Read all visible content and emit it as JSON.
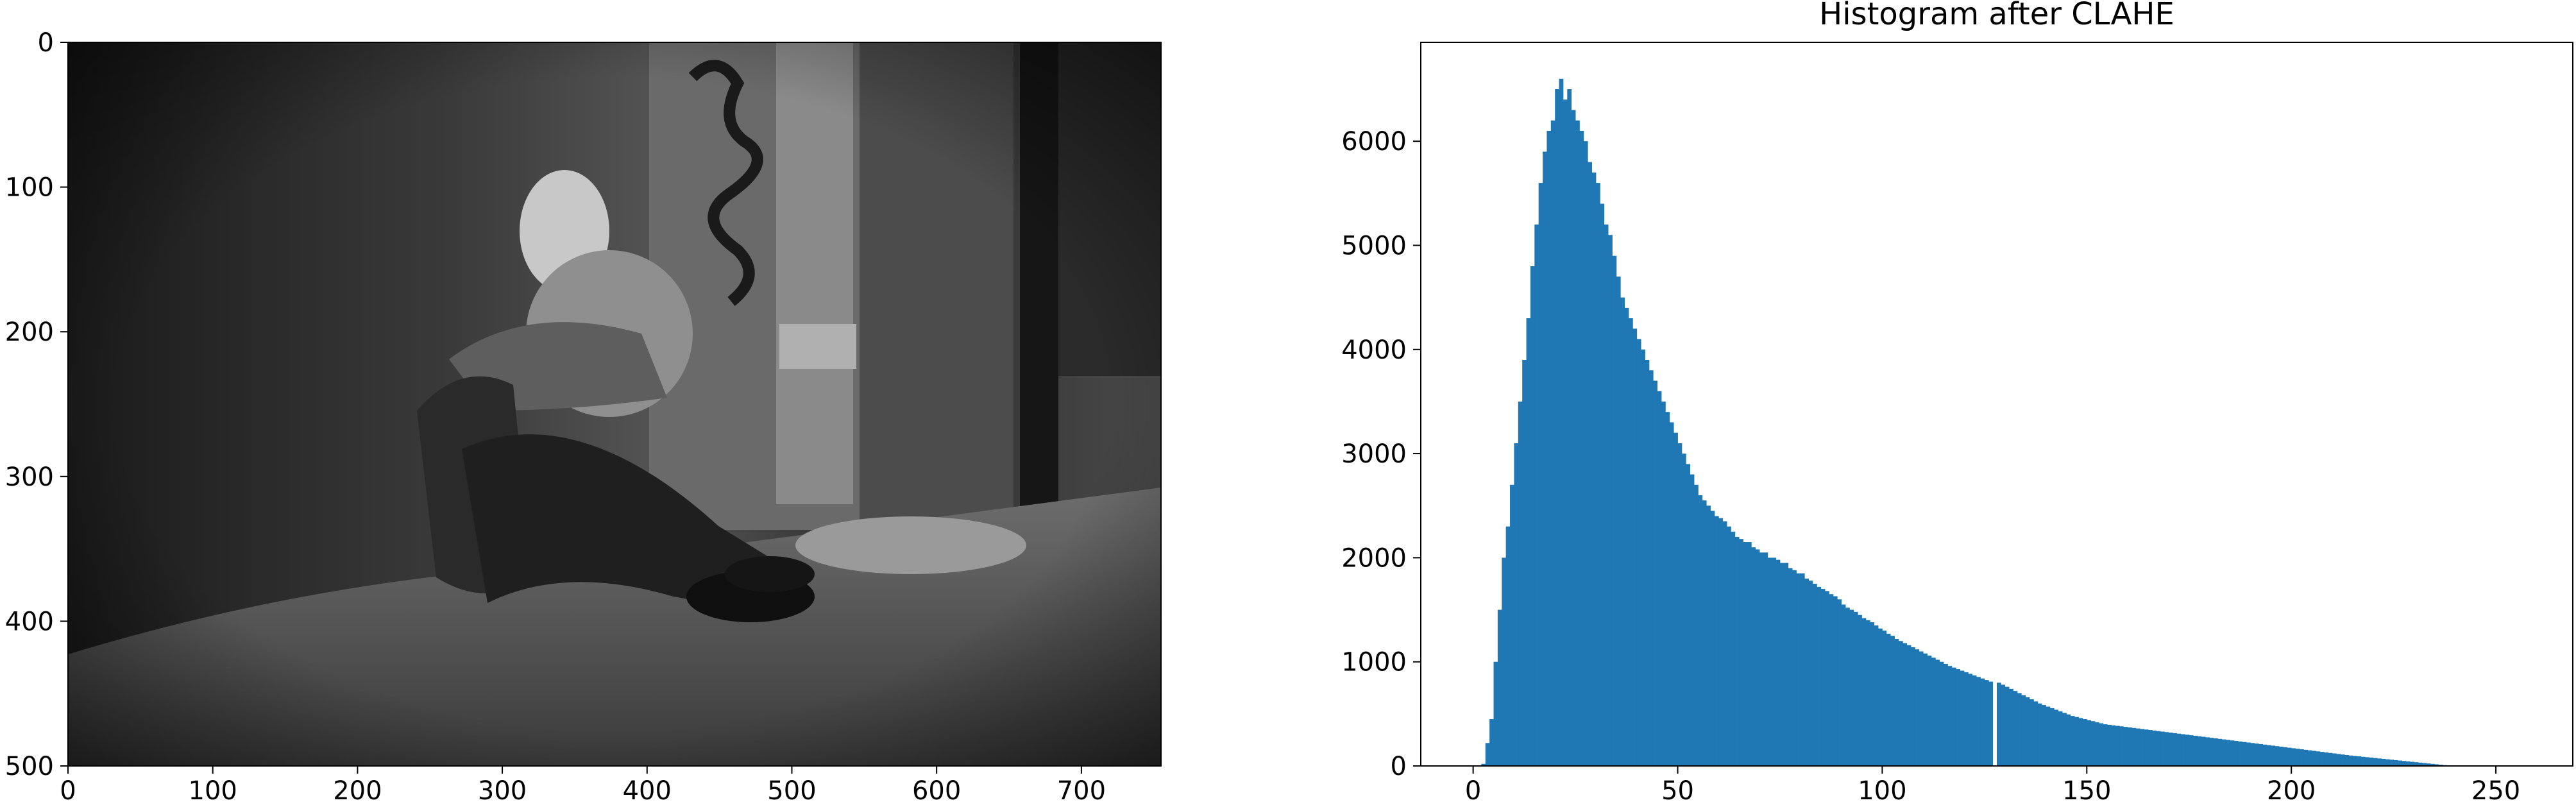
{
  "colors": {
    "bar": "#1f77b4",
    "axis": "#000000",
    "background": "#ffffff"
  },
  "chart_data": [
    {
      "type": "image",
      "title": "",
      "xlabel": "",
      "ylabel": "",
      "xlim": [
        0,
        755
      ],
      "ylim": [
        500,
        0
      ],
      "x_ticks": [
        "0",
        "100",
        "200",
        "300",
        "400",
        "500",
        "600",
        "700"
      ],
      "y_ticks": [
        "0",
        "100",
        "200",
        "300",
        "400",
        "500"
      ],
      "image_content": "grayscale photograph"
    },
    {
      "type": "bar",
      "title": "Histogram after CLAHE",
      "xlabel": "",
      "ylabel": "",
      "xlim": [
        -12.8,
        268.8
      ],
      "ylim": [
        0,
        6950
      ],
      "x_ticks": [
        "0",
        "50",
        "100",
        "150",
        "200",
        "250"
      ],
      "y_ticks": [
        "0",
        "1000",
        "2000",
        "3000",
        "4000",
        "5000",
        "6000"
      ],
      "grid": false,
      "bin_start": 0,
      "bin_width": 1,
      "values": [
        0,
        0,
        20,
        220,
        450,
        1000,
        1500,
        2000,
        2300,
        2700,
        3100,
        3500,
        3900,
        4300,
        4800,
        5200,
        5600,
        5900,
        6100,
        6200,
        6500,
        6600,
        6400,
        6500,
        6300,
        6200,
        6100,
        6000,
        5800,
        5700,
        5600,
        5400,
        5200,
        5100,
        4900,
        4700,
        4500,
        4400,
        4300,
        4200,
        4100,
        4000,
        3900,
        3800,
        3700,
        3600,
        3500,
        3400,
        3300,
        3200,
        3100,
        3000,
        2900,
        2800,
        2700,
        2600,
        2550,
        2500,
        2450,
        2400,
        2380,
        2350,
        2300,
        2250,
        2200,
        2180,
        2150,
        2150,
        2100,
        2080,
        2050,
        2050,
        2000,
        2000,
        1980,
        1950,
        1950,
        1900,
        1880,
        1850,
        1850,
        1800,
        1780,
        1750,
        1720,
        1700,
        1680,
        1650,
        1630,
        1600,
        1550,
        1520,
        1500,
        1480,
        1450,
        1420,
        1400,
        1380,
        1350,
        1320,
        1300,
        1270,
        1250,
        1220,
        1200,
        1180,
        1160,
        1140,
        1120,
        1100,
        1080,
        1060,
        1040,
        1020,
        1000,
        980,
        960,
        945,
        930,
        915,
        900,
        885,
        870,
        855,
        840,
        825,
        810,
        0,
        800,
        780,
        760,
        740,
        720,
        700,
        680,
        660,
        640,
        620,
        600,
        585,
        570,
        555,
        540,
        525,
        510,
        495,
        480,
        470,
        460,
        450,
        440,
        430,
        420,
        410,
        400,
        395,
        390,
        385,
        380,
        375,
        370,
        365,
        360,
        355,
        350,
        345,
        340,
        335,
        330,
        325,
        320,
        315,
        310,
        305,
        300,
        295,
        290,
        285,
        280,
        275,
        270,
        265,
        260,
        255,
        250,
        245,
        240,
        235,
        230,
        225,
        220,
        215,
        210,
        205,
        200,
        195,
        190,
        185,
        180,
        175,
        170,
        165,
        160,
        155,
        150,
        145,
        140,
        135,
        130,
        125,
        120,
        115,
        110,
        105,
        100,
        96,
        92,
        88,
        84,
        80,
        76,
        72,
        68,
        64,
        60,
        56,
        52,
        48,
        44,
        40,
        36,
        32,
        28,
        24,
        20,
        16,
        12,
        8,
        4,
        0,
        0,
        0
      ]
    }
  ]
}
